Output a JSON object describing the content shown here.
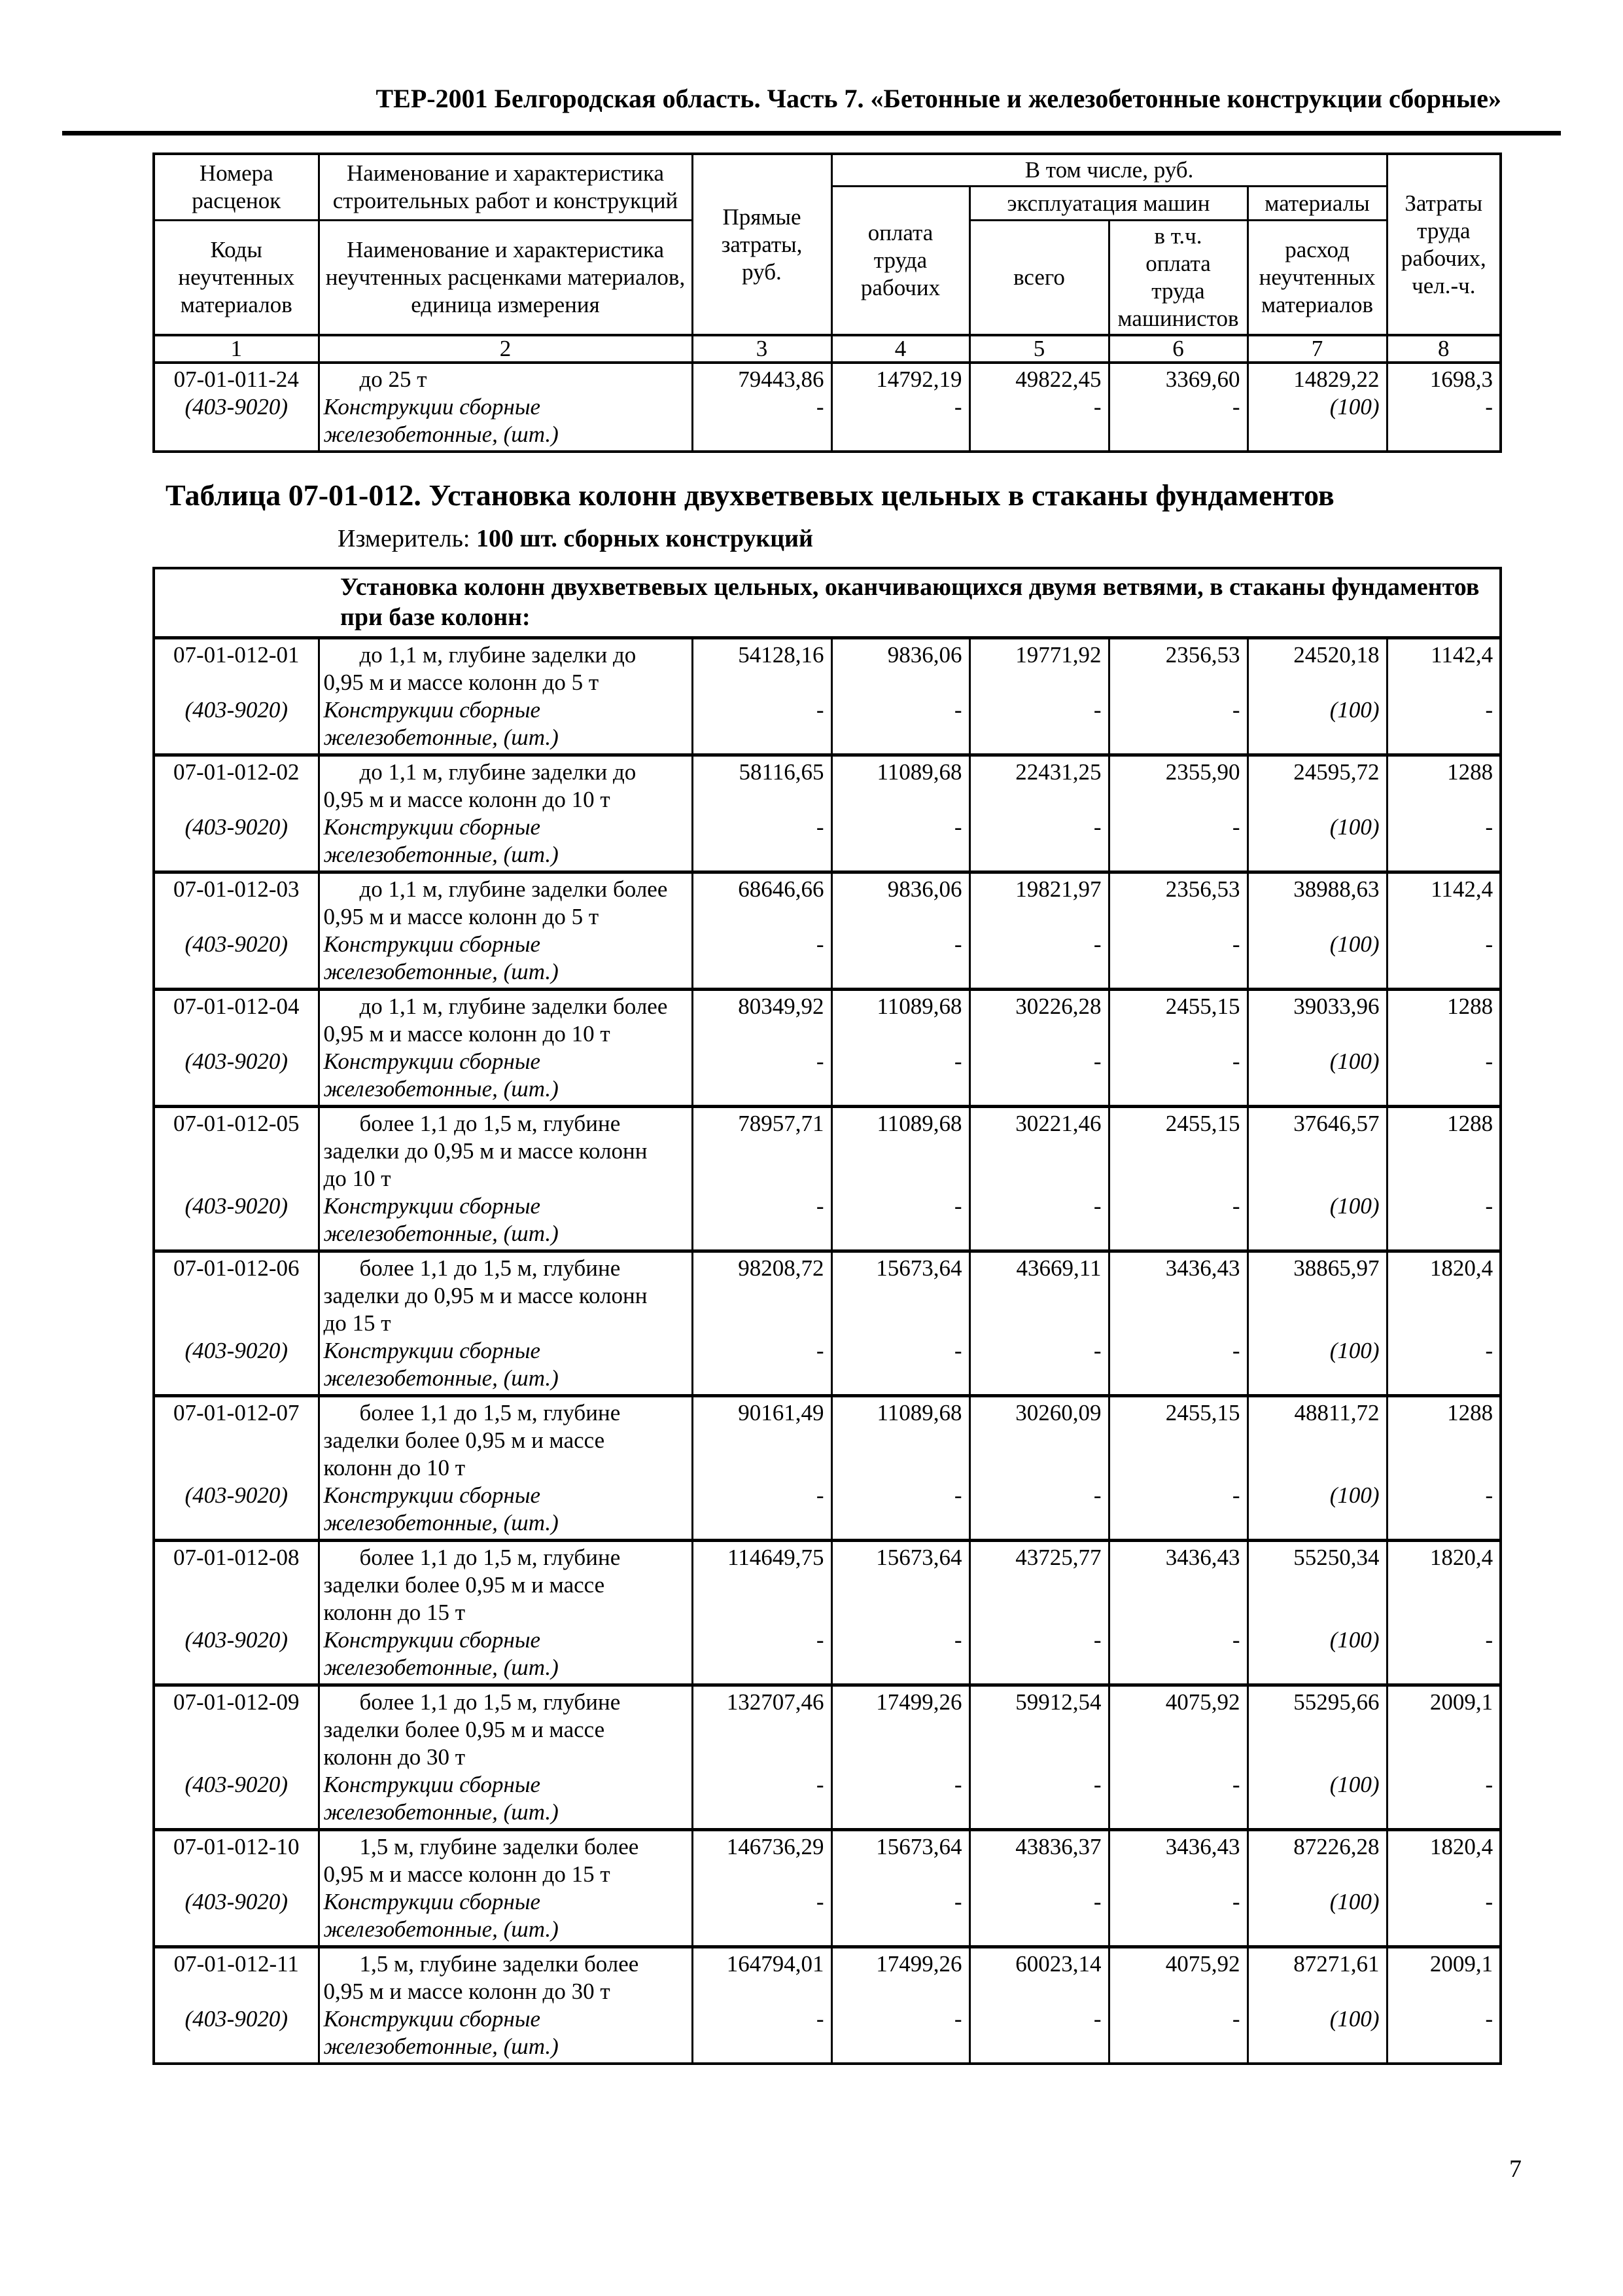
{
  "colors": {
    "ink": "#000000",
    "paper": "#ffffff"
  },
  "page": {
    "header_title": "ТЕР-2001 Белгородская область. Часть 7. «Бетонные и железобетонные конструкции сборные»",
    "page_number": "7"
  },
  "table_header": {
    "col1_top": "Номера\nрасценок",
    "col1_bottom": "Коды\nнеучтенных\nматериалов",
    "col2_top": "Наименование и характеристика\nстроительных работ и конструкций",
    "col2_bottom": "Наименование и характеристика\nнеучтенных расценками материалов,\nединица измерения",
    "col3": "Прямые\nзатраты,\nруб.",
    "group_in_total": "В том числе, руб.",
    "col4": "оплата\nтруда\nрабочих",
    "group_machines": "эксплуатация машин",
    "group_materials": "материалы",
    "col5": "всего",
    "col6": "в т.ч.\nоплата\nтруда\nмашинистов",
    "col7": "расход\nнеучтенных\nматериалов",
    "col8": "Затраты\nтруда\nрабочих,\nчел.-ч.",
    "number_row": [
      "1",
      "2",
      "3",
      "4",
      "5",
      "6",
      "7",
      "8"
    ]
  },
  "table_011": {
    "rows": [
      {
        "code": "07-01-011-24",
        "material_code": "(403-9020)",
        "desc": "до 25 т",
        "desc_lines": 1,
        "material_desc": "Конструкции сборные\nжелезобетонные, (шт.)",
        "values": [
          "79443,86",
          "14792,19",
          "49822,45",
          "3369,60",
          "14829,22",
          "1698,3"
        ],
        "material_values": [
          "-",
          "-",
          "-",
          "-",
          "(100)",
          "-"
        ]
      }
    ]
  },
  "section_012": {
    "title": "Таблица 07-01-012. Установка колонн двухветвевых цельных в стаканы фундаментов",
    "measure_label": "Измеритель:",
    "measure_value": "100 шт. сборных конструкций",
    "group_header": "Установка колонн двухветвевых цельных, оканчивающихся двумя ветвями, в стаканы фундаментов\nпри базе колонн:",
    "rows": [
      {
        "code": "07-01-012-01",
        "material_code": "(403-9020)",
        "desc": "до 1,1 м, глубине заделки до\n0,95 м и массе колонн до 5 т",
        "desc_lines": 2,
        "material_desc": "Конструкции сборные\nжелезобетонные, (шт.)",
        "values": [
          "54128,16",
          "9836,06",
          "19771,92",
          "2356,53",
          "24520,18",
          "1142,4"
        ],
        "material_values": [
          "-",
          "-",
          "-",
          "-",
          "(100)",
          "-"
        ]
      },
      {
        "code": "07-01-012-02",
        "material_code": "(403-9020)",
        "desc": "до 1,1 м, глубине заделки до\n0,95 м и массе колонн до 10 т",
        "desc_lines": 2,
        "material_desc": "Конструкции сборные\nжелезобетонные, (шт.)",
        "values": [
          "58116,65",
          "11089,68",
          "22431,25",
          "2355,90",
          "24595,72",
          "1288"
        ],
        "material_values": [
          "-",
          "-",
          "-",
          "-",
          "(100)",
          "-"
        ]
      },
      {
        "code": "07-01-012-03",
        "material_code": "(403-9020)",
        "desc": "до 1,1 м, глубине заделки более\n0,95 м и массе колонн до 5 т",
        "desc_lines": 2,
        "material_desc": "Конструкции сборные\nжелезобетонные, (шт.)",
        "values": [
          "68646,66",
          "9836,06",
          "19821,97",
          "2356,53",
          "38988,63",
          "1142,4"
        ],
        "material_values": [
          "-",
          "-",
          "-",
          "-",
          "(100)",
          "-"
        ]
      },
      {
        "code": "07-01-012-04",
        "material_code": "(403-9020)",
        "desc": "до 1,1 м, глубине заделки более\n0,95 м и массе колонн до 10 т",
        "desc_lines": 2,
        "material_desc": "Конструкции сборные\nжелезобетонные, (шт.)",
        "values": [
          "80349,92",
          "11089,68",
          "30226,28",
          "2455,15",
          "39033,96",
          "1288"
        ],
        "material_values": [
          "-",
          "-",
          "-",
          "-",
          "(100)",
          "-"
        ]
      },
      {
        "code": "07-01-012-05",
        "material_code": "(403-9020)",
        "desc": "более 1,1 до 1,5 м, глубине\nзаделки до 0,95 м и массе колонн\nдо 10 т",
        "desc_lines": 3,
        "material_desc": "Конструкции сборные\nжелезобетонные, (шт.)",
        "values": [
          "78957,71",
          "11089,68",
          "30221,46",
          "2455,15",
          "37646,57",
          "1288"
        ],
        "material_values": [
          "-",
          "-",
          "-",
          "-",
          "(100)",
          "-"
        ]
      },
      {
        "code": "07-01-012-06",
        "material_code": "(403-9020)",
        "desc": "более 1,1 до 1,5 м, глубине\nзаделки до 0,95 м и массе колонн\nдо 15 т",
        "desc_lines": 3,
        "material_desc": "Конструкции сборные\nжелезобетонные, (шт.)",
        "values": [
          "98208,72",
          "15673,64",
          "43669,11",
          "3436,43",
          "38865,97",
          "1820,4"
        ],
        "material_values": [
          "-",
          "-",
          "-",
          "-",
          "(100)",
          "-"
        ]
      },
      {
        "code": "07-01-012-07",
        "material_code": "(403-9020)",
        "desc": "более 1,1 до 1,5 м, глубине\nзаделки более 0,95 м и массе\nколонн до 10 т",
        "desc_lines": 3,
        "material_desc": "Конструкции сборные\nжелезобетонные, (шт.)",
        "values": [
          "90161,49",
          "11089,68",
          "30260,09",
          "2455,15",
          "48811,72",
          "1288"
        ],
        "material_values": [
          "-",
          "-",
          "-",
          "-",
          "(100)",
          "-"
        ]
      },
      {
        "code": "07-01-012-08",
        "material_code": "(403-9020)",
        "desc": "более 1,1 до 1,5 м, глубине\nзаделки более 0,95 м и массе\nколонн до 15 т",
        "desc_lines": 3,
        "material_desc": "Конструкции сборные\nжелезобетонные, (шт.)",
        "values": [
          "114649,75",
          "15673,64",
          "43725,77",
          "3436,43",
          "55250,34",
          "1820,4"
        ],
        "material_values": [
          "-",
          "-",
          "-",
          "-",
          "(100)",
          "-"
        ]
      },
      {
        "code": "07-01-012-09",
        "material_code": "(403-9020)",
        "desc": "более 1,1 до 1,5 м, глубине\nзаделки более 0,95 м и массе\nколонн до 30 т",
        "desc_lines": 3,
        "material_desc": "Конструкции сборные\nжелезобетонные, (шт.)",
        "values": [
          "132707,46",
          "17499,26",
          "59912,54",
          "4075,92",
          "55295,66",
          "2009,1"
        ],
        "material_values": [
          "-",
          "-",
          "-",
          "-",
          "(100)",
          "-"
        ]
      },
      {
        "code": "07-01-012-10",
        "material_code": "(403-9020)",
        "desc": "1,5 м, глубине заделки более\n0,95 м и массе колонн до 15 т",
        "desc_lines": 2,
        "material_desc": "Конструкции сборные\nжелезобетонные, (шт.)",
        "values": [
          "146736,29",
          "15673,64",
          "43836,37",
          "3436,43",
          "87226,28",
          "1820,4"
        ],
        "material_values": [
          "-",
          "-",
          "-",
          "-",
          "(100)",
          "-"
        ]
      },
      {
        "code": "07-01-012-11",
        "material_code": "(403-9020)",
        "desc": "1,5 м, глубине заделки более\n0,95 м и массе колонн до 30 т",
        "desc_lines": 2,
        "material_desc": "Конструкции сборные\nжелезобетонные, (шт.)",
        "values": [
          "164794,01",
          "17499,26",
          "60023,14",
          "4075,92",
          "87271,61",
          "2009,1"
        ],
        "material_values": [
          "-",
          "-",
          "-",
          "-",
          "(100)",
          "-"
        ]
      }
    ]
  }
}
